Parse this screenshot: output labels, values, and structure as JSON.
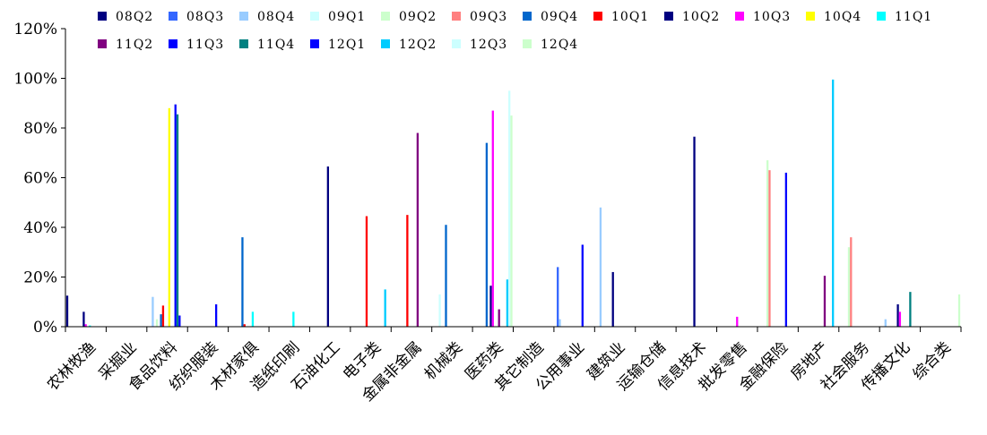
{
  "chart_data": {
    "type": "bar",
    "categories": [
      "农林牧渔",
      "采掘业",
      "食品饮料",
      "纺织服装",
      "木材家俱",
      "造纸印刷",
      "石油化工",
      "电子类",
      "金属非金属",
      "机械类",
      "医药类",
      "其它制造",
      "公用事业",
      "建筑业",
      "运输仓储",
      "信息技术",
      "批发零售",
      "金融保险",
      "房地产",
      "社会服务",
      "传播文化",
      "综合类"
    ],
    "y_ticks": [
      "0%",
      "20%",
      "40%",
      "60%",
      "80%",
      "100%",
      "120%"
    ],
    "ylim": [
      0,
      120
    ],
    "grid": false,
    "legend_position": "top",
    "series": [
      {
        "name": "08Q2",
        "color": "#000080",
        "values": [
          12.5,
          0,
          0,
          0,
          0,
          0,
          0,
          0,
          0,
          0,
          0,
          0,
          0,
          0,
          0,
          0,
          0,
          0,
          0,
          0,
          0,
          0
        ]
      },
      {
        "name": "08Q3",
        "color": "#3366FF",
        "values": [
          0,
          0,
          0,
          0,
          0,
          0,
          0,
          0,
          0,
          0,
          0,
          0,
          24,
          0,
          0,
          0,
          0,
          0,
          0,
          0,
          0,
          0
        ]
      },
      {
        "name": "08Q4",
        "color": "#99CCFF",
        "values": [
          0,
          0,
          12,
          0,
          0,
          0,
          0,
          0,
          0,
          0,
          0,
          0,
          3,
          48,
          0,
          0,
          0,
          0,
          0,
          0,
          3,
          0
        ]
      },
      {
        "name": "09Q1",
        "color": "#CCFFFF",
        "values": [
          0,
          0,
          0,
          0,
          0,
          0,
          0,
          0,
          0,
          13,
          0,
          0,
          0,
          0,
          0,
          0,
          0,
          0,
          0,
          0,
          0,
          0
        ]
      },
      {
        "name": "09Q2",
        "color": "#CCFFCC",
        "values": [
          0,
          0,
          3,
          0,
          0,
          0,
          0,
          0,
          0,
          0,
          0,
          0,
          0,
          0,
          0,
          0,
          0,
          67,
          0,
          32,
          0,
          0
        ]
      },
      {
        "name": "09Q3",
        "color": "#FF8080",
        "values": [
          0,
          0,
          0,
          0,
          0,
          0,
          0,
          0,
          0,
          0,
          0,
          0,
          0,
          0,
          0,
          0,
          0,
          63,
          0,
          36,
          0,
          0
        ]
      },
      {
        "name": "09Q4",
        "color": "#0066CC",
        "values": [
          0,
          0,
          5,
          0,
          36,
          0,
          0,
          0,
          0,
          41,
          74,
          0,
          0,
          0,
          0,
          0,
          0,
          0,
          0,
          0,
          0,
          0
        ]
      },
      {
        "name": "10Q1",
        "color": "#FF0000",
        "values": [
          0,
          0,
          8.5,
          0,
          1,
          0,
          0,
          44.5,
          45,
          0,
          0,
          0,
          0,
          0,
          0,
          0,
          0,
          0,
          0,
          0,
          0,
          0
        ]
      },
      {
        "name": "10Q2",
        "color": "#000080",
        "values": [
          6,
          0,
          0,
          0,
          0,
          0,
          64.5,
          0,
          0,
          0,
          16.5,
          0,
          0,
          22,
          0,
          76.5,
          0,
          0,
          0,
          0,
          9,
          0
        ]
      },
      {
        "name": "10Q3",
        "color": "#FF00FF",
        "values": [
          1,
          0,
          0,
          0,
          0,
          0,
          0,
          0,
          0,
          0,
          87,
          0,
          0,
          0,
          0,
          0,
          4,
          0,
          0,
          0,
          6,
          0
        ]
      },
      {
        "name": "10Q4",
        "color": "#FFFF00",
        "values": [
          0,
          0,
          88,
          0,
          0,
          0,
          0,
          0,
          0,
          0,
          0,
          0,
          0,
          0,
          0,
          0,
          0,
          0,
          0,
          0,
          0,
          0
        ]
      },
      {
        "name": "11Q1",
        "color": "#00FFFF",
        "values": [
          0.5,
          0,
          0,
          0,
          6,
          6,
          0,
          0,
          0,
          0,
          0,
          0,
          0,
          0,
          0,
          0,
          0,
          0,
          0,
          0,
          0,
          0
        ]
      },
      {
        "name": "11Q2",
        "color": "#800080",
        "values": [
          0,
          0,
          0,
          0,
          0,
          0,
          0,
          0,
          78,
          0,
          7,
          0,
          0,
          0,
          0,
          0,
          0,
          0,
          20.5,
          0,
          0,
          0
        ]
      },
      {
        "name": "11Q3",
        "color": "#0000FF",
        "values": [
          0,
          0,
          89.5,
          9,
          0,
          0,
          0,
          0,
          0,
          0,
          0,
          0,
          33,
          0,
          0,
          0,
          0,
          62,
          0,
          0,
          0,
          0
        ]
      },
      {
        "name": "11Q4",
        "color": "#008080",
        "values": [
          0,
          0,
          85.5,
          0,
          0,
          0,
          0,
          0,
          0,
          0,
          0,
          0,
          0,
          0,
          0,
          0,
          0,
          0,
          0,
          0,
          14,
          0
        ]
      },
      {
        "name": "12Q1",
        "color": "#0000FF",
        "values": [
          0,
          0,
          4.5,
          0,
          0,
          0,
          0,
          0,
          0,
          0,
          0,
          0,
          0,
          0,
          0,
          0,
          0,
          0,
          0,
          0,
          0,
          0
        ]
      },
      {
        "name": "12Q2",
        "color": "#00CCFF",
        "values": [
          0,
          0,
          0,
          0,
          0,
          0,
          0,
          15,
          0,
          0,
          19,
          0,
          0,
          0,
          0,
          0,
          0,
          0,
          99.5,
          0,
          0,
          0
        ]
      },
      {
        "name": "12Q3",
        "color": "#CCFFFF",
        "values": [
          0,
          0,
          0,
          0,
          0,
          0,
          0,
          0,
          0,
          0,
          95,
          0,
          0,
          0,
          0,
          0,
          0,
          0,
          0,
          0,
          0,
          0
        ]
      },
      {
        "name": "12Q4",
        "color": "#CCFFCC",
        "values": [
          0,
          0,
          0,
          0,
          0,
          0,
          0,
          0,
          0,
          0,
          85,
          0,
          0,
          0,
          0,
          0,
          0,
          0,
          0,
          0,
          0,
          13
        ]
      }
    ]
  }
}
